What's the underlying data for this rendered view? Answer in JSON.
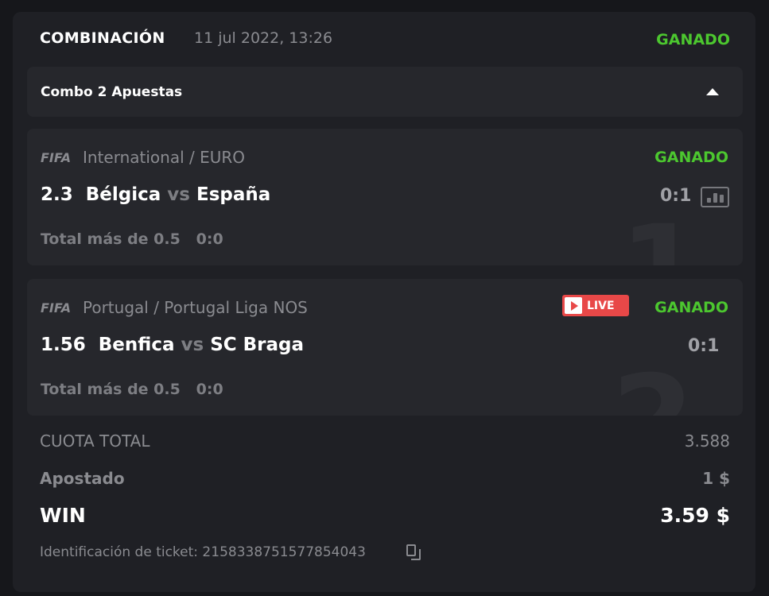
{
  "header": {
    "title": "COMBINACIÓN",
    "date": "11 jul 2022, 13:26",
    "status": "GANADO"
  },
  "combo": {
    "label": "Combo 2 Apuestas"
  },
  "bets": [
    {
      "index": "1",
      "sport_logo": "FIFA",
      "league": "International / EURO",
      "odds": "2.3",
      "home": "Bélgica",
      "vs": "vs",
      "away": "España",
      "market": "Total más de 0.5   0:0",
      "status": "GANADO",
      "score": "0:1",
      "live": false
    },
    {
      "index": "2",
      "sport_logo": "FIFA",
      "league": "Portugal / Portugal Liga NOS",
      "odds": "1.56",
      "home": "Benfica",
      "vs": "vs",
      "away": "SC Braga",
      "market": "Total más de 0.5   0:0",
      "status": "GANADO",
      "score": "0:1",
      "live": true,
      "live_label": "LIVE"
    }
  ],
  "summary": {
    "total_odds_label": "CUOTA TOTAL",
    "total_odds": "3.588",
    "stake_label": "Apostado",
    "stake": "1 $",
    "win_label": "WIN",
    "win": "3.59 $"
  },
  "ticket": {
    "label": "Identificación de ticket: 2158338751577854043"
  },
  "colors": {
    "won": "#4cc72f",
    "live": "#e84848"
  }
}
